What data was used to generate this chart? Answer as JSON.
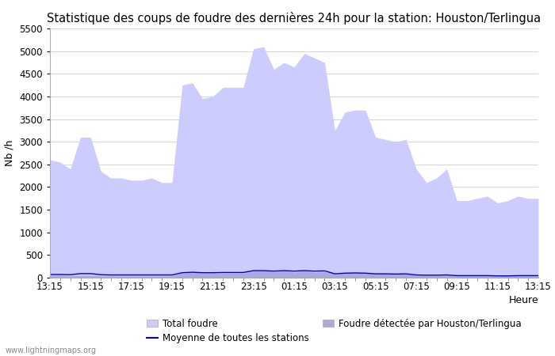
{
  "title": "Statistique des coups de foudre des dernières 24h pour la station: Houston/Terlingua",
  "xlabel": "Heure",
  "ylabel": "Nb /h",
  "watermark": "www.lightningmaps.org",
  "xlim": [
    0,
    48
  ],
  "ylim": [
    0,
    5500
  ],
  "yticks": [
    0,
    500,
    1000,
    1500,
    2000,
    2500,
    3000,
    3500,
    4000,
    4500,
    5000,
    5500
  ],
  "xtick_labels": [
    "13:15",
    "15:15",
    "17:15",
    "19:15",
    "21:15",
    "23:15",
    "01:15",
    "03:15",
    "05:15",
    "07:15",
    "09:15",
    "11:15",
    "13:15"
  ],
  "xtick_positions": [
    0,
    4,
    8,
    12,
    16,
    20,
    24,
    28,
    32,
    36,
    40,
    44,
    48
  ],
  "color_total": "#ccccff",
  "color_station": "#aaaadd",
  "color_mean": "#0000cc",
  "legend_total": "Total foudre",
  "legend_mean": "Moyenne de toutes les stations",
  "legend_station": "Foudre détectée par Houston/Terlingua",
  "total_foudre": [
    2600,
    2550,
    2400,
    3100,
    3100,
    2350,
    2200,
    2200,
    2150,
    2150,
    2200,
    2100,
    2100,
    4250,
    4300,
    3950,
    4000,
    4200,
    4200,
    4200,
    5050,
    5100,
    4600,
    4750,
    4650,
    4950,
    4850,
    4750,
    3250,
    3650,
    3700,
    3700,
    3100,
    3050,
    3000,
    3050,
    2400,
    2100,
    2200,
    2400,
    1700,
    1700,
    1750,
    1800,
    1650,
    1700,
    1800,
    1750,
    1750
  ],
  "station_foudre": [
    50,
    50,
    40,
    50,
    50,
    40,
    40,
    40,
    40,
    40,
    40,
    40,
    40,
    100,
    120,
    100,
    100,
    100,
    100,
    100,
    150,
    150,
    130,
    150,
    120,
    150,
    120,
    130,
    80,
    100,
    110,
    100,
    80,
    90,
    80,
    80,
    50,
    50,
    50,
    50,
    40,
    40,
    40,
    40,
    40,
    40,
    40,
    40,
    40
  ],
  "mean_line": [
    70,
    70,
    65,
    90,
    90,
    65,
    60,
    60,
    60,
    60,
    60,
    60,
    60,
    110,
    120,
    110,
    110,
    115,
    115,
    115,
    155,
    155,
    145,
    155,
    145,
    155,
    145,
    150,
    85,
    100,
    105,
    100,
    85,
    85,
    80,
    85,
    60,
    55,
    55,
    60,
    45,
    45,
    45,
    45,
    40,
    40,
    45,
    45,
    45
  ],
  "bg_color": "#ffffff",
  "grid_color": "#cccccc",
  "title_fontsize": 10.5,
  "axis_fontsize": 9,
  "tick_fontsize": 8.5
}
